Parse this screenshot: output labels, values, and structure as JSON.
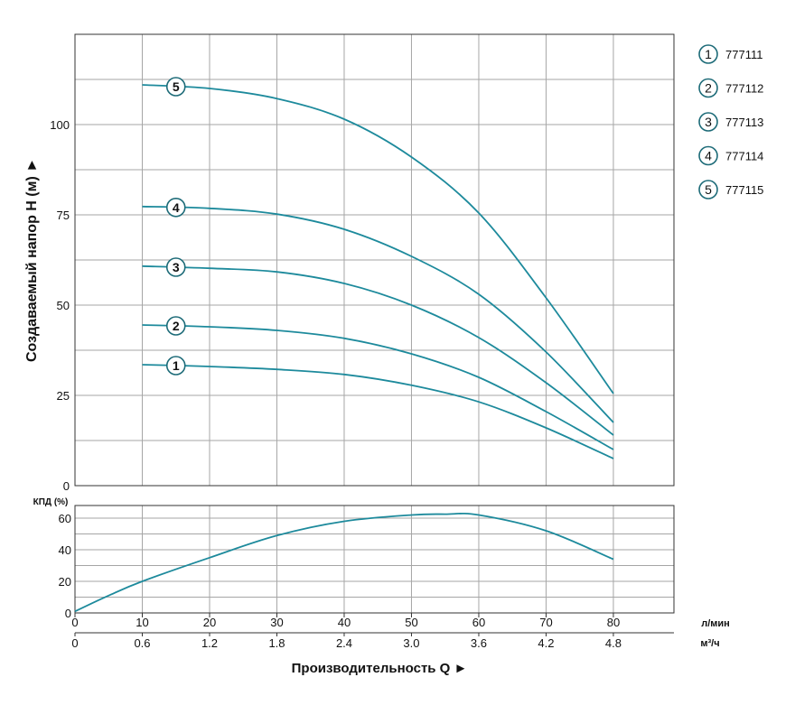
{
  "chart_data": [
    {
      "type": "line",
      "ylabel": "Создаваемый напор H (м) ►",
      "x_lpm": [
        10,
        20,
        30,
        40,
        50,
        60,
        70,
        80
      ],
      "xlim_lpm": [
        0,
        89
      ],
      "ylim": [
        0,
        125
      ],
      "yticks": [
        0,
        25,
        50,
        75,
        100
      ],
      "grid": true,
      "legend_position": "right",
      "series": [
        {
          "name": "777111",
          "marker": "1",
          "values": [
            33.5,
            33.0,
            32.2,
            30.8,
            27.8,
            23.2,
            16.0,
            7.5
          ]
        },
        {
          "name": "777112",
          "marker": "2",
          "values": [
            44.5,
            44.0,
            43.0,
            40.8,
            36.5,
            30.0,
            20.5,
            10.0
          ]
        },
        {
          "name": "777113",
          "marker": "3",
          "values": [
            60.8,
            60.2,
            59.2,
            56.0,
            50.0,
            41.0,
            28.5,
            14.0
          ]
        },
        {
          "name": "777114",
          "marker": "4",
          "values": [
            77.3,
            76.8,
            75.2,
            71.0,
            63.5,
            53.0,
            37.0,
            17.5
          ]
        },
        {
          "name": "777115",
          "marker": "5",
          "values": [
            111.0,
            110.0,
            107.2,
            101.5,
            91.0,
            75.5,
            52.0,
            25.5
          ]
        }
      ]
    },
    {
      "type": "line",
      "ylabel": "КПД (%)",
      "ylim": [
        0,
        68
      ],
      "yticks": [
        0,
        20,
        40,
        60
      ],
      "grid": true,
      "series": [
        {
          "x": [
            0,
            5,
            10,
            20,
            30,
            40,
            50,
            55,
            60,
            70,
            80
          ],
          "values": [
            1,
            11,
            20,
            35,
            49,
            58,
            62,
            62.5,
            62,
            52,
            34
          ]
        }
      ]
    }
  ],
  "x_axis": {
    "lpm_ticks": [
      "0",
      "10",
      "20",
      "30",
      "40",
      "50",
      "60",
      "70",
      "80"
    ],
    "lpm_unit": "л/мин",
    "m3h_ticks": [
      "0",
      "0.6",
      "1.2",
      "1.8",
      "2.4",
      "3.0",
      "3.6",
      "4.2",
      "4.8"
    ],
    "m3h_unit": "м³/ч",
    "xlabel": "Производительность Q ►"
  },
  "colors": {
    "curve": "#1d8a9c",
    "grid": "#a6a6a6",
    "frame": "#333333",
    "marker_stroke": "#1d6b78"
  }
}
